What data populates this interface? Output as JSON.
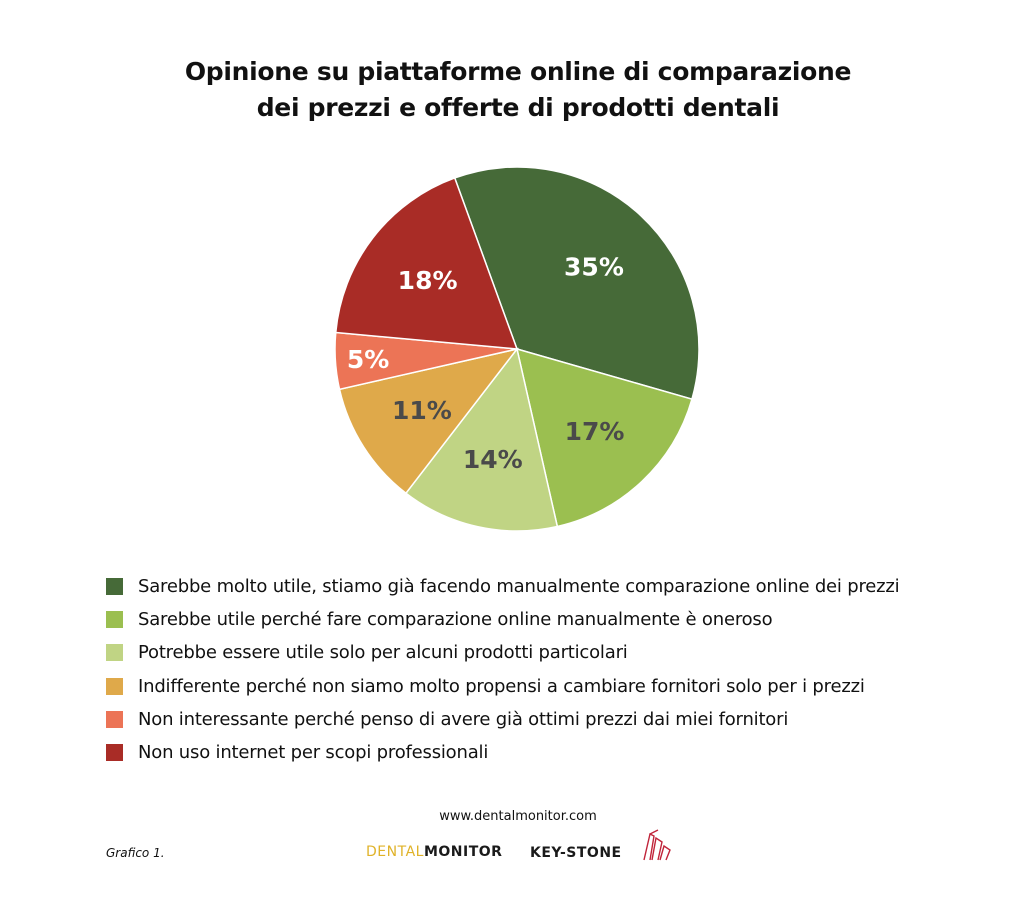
{
  "title": {
    "line1": "Opinione su piattaforme online di comparazione",
    "line2": "dei prezzi e offerte di prodotti dentali"
  },
  "chart_data": {
    "type": "pie",
    "title": "Opinione su piattaforme online di comparazione dei prezzi e offerte di prodotti dentali",
    "start_angle_deg": -20,
    "direction": "clockwise",
    "categories": [
      "Sarebbe molto utile, stiamo già facendo manualmente comparazione online dei prezzi",
      "Sarebbe utile perché fare comparazione online manualmente è oneroso",
      "Potrebbe essere utile solo per alcuni prodotti particolari",
      "Indifferente perché non siamo molto propensi a cambiare fornitori solo per i prezzi",
      "Non interessante perché penso di avere già ottimi prezzi dai miei fornitori",
      "Non uso internet per scopi professionali"
    ],
    "values": [
      35,
      17,
      14,
      11,
      5,
      18
    ],
    "labels": [
      "35%",
      "17%",
      "14%",
      "11%",
      "5%",
      "18%"
    ],
    "colors": [
      "#466a38",
      "#9bbf50",
      "#c0d484",
      "#dfa94a",
      "#ec7456",
      "#a92c26"
    ],
    "label_colors": [
      "#ffffff",
      "#4a4a4a",
      "#4a4a4a",
      "#4a4a4a",
      "#ffffff",
      "#ffffff"
    ],
    "legend_position": "bottom"
  },
  "footer": {
    "url": "www.dentalmonitor.com",
    "caption": "Grafico 1.",
    "logo_dental_a": "DENTAL",
    "logo_dental_b": "MONITOR",
    "logo_keystone": "KEY-STONE"
  }
}
